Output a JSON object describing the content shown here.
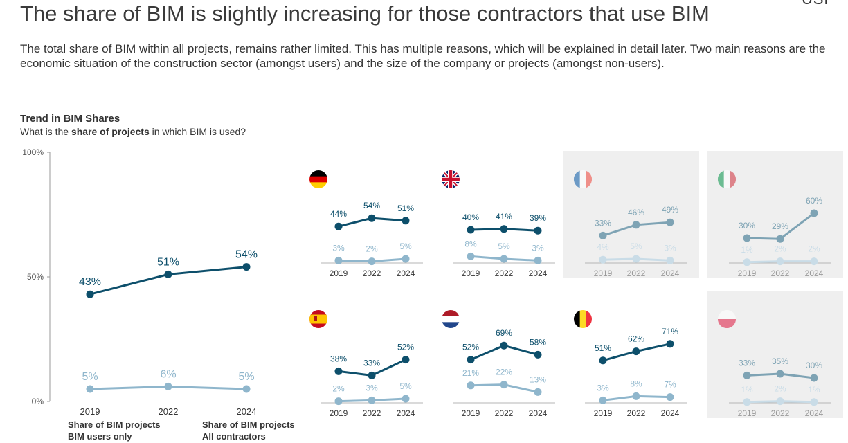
{
  "title": "The share of BIM is slightly increasing for those contractors that use BIM",
  "logo": "USP",
  "subtitle": "The total share of BIM within all projects, remains rather limited. This has multiple reasons, which will be explained in detail later. Two main reasons are the economic situation of the construction sector (amongst users) and the size of the company or projects (amongst non-users).",
  "chart_heading": "Trend in BIM Shares",
  "question": {
    "prefix": "What is the ",
    "bold": "share of projects",
    "suffix": " in which BIM is used?"
  },
  "legend": [
    {
      "line1": "Share of BIM projects",
      "line2": "BIM users only",
      "color": "#0d4f6b"
    },
    {
      "line1": "Share of BIM projects",
      "line2": "All contractors",
      "color": "#8fb6cc"
    }
  ],
  "colors": {
    "users": "#0d4f6b",
    "all": "#8fb6cc",
    "users_muted": "#7ea3b4",
    "all_muted": "#c9dce7",
    "panel_bg": "#efefef"
  },
  "chart_data": [
    {
      "type": "line",
      "x": [
        "2019",
        "2022",
        "2024"
      ],
      "series": [
        {
          "name": "Share of BIM projects BIM users only",
          "values": [
            43,
            51,
            54
          ],
          "labels": [
            "43%",
            "51%",
            "54%"
          ]
        },
        {
          "name": "Share of BIM projects All contractors",
          "values": [
            5,
            6,
            5
          ],
          "labels": [
            "5%",
            "6%",
            "5%"
          ]
        }
      ],
      "yticks": [
        "100%",
        "50%",
        "0%"
      ],
      "ylim": [
        0,
        100
      ],
      "grid": false
    },
    {
      "type": "line",
      "flag": "germany-flag-icon",
      "muted": false,
      "x": [
        "2019",
        "2022",
        "2024"
      ],
      "users": [
        44,
        54,
        51
      ],
      "all": [
        3,
        2,
        5
      ],
      "users_labels": [
        "44%",
        "54%",
        "51%"
      ],
      "all_labels": [
        "3%",
        "2%",
        "5%"
      ]
    },
    {
      "type": "line",
      "flag": "uk-flag-icon",
      "muted": false,
      "x": [
        "2019",
        "2022",
        "2024"
      ],
      "users": [
        40,
        41,
        39
      ],
      "all": [
        8,
        5,
        3
      ],
      "users_labels": [
        "40%",
        "41%",
        "39%"
      ],
      "all_labels": [
        "8%",
        "5%",
        "3%"
      ]
    },
    {
      "type": "line",
      "flag": "france-flag-icon",
      "muted": true,
      "x": [
        "2019",
        "2022",
        "2024"
      ],
      "users": [
        33,
        46,
        49
      ],
      "all": [
        4,
        5,
        3
      ],
      "users_labels": [
        "33%",
        "46%",
        "49%"
      ],
      "all_labels": [
        "4%",
        "5%",
        "3%"
      ]
    },
    {
      "type": "line",
      "flag": "italy-flag-icon",
      "muted": true,
      "x": [
        "2019",
        "2022",
        "2024"
      ],
      "users": [
        30,
        29,
        60
      ],
      "all": [
        1,
        2,
        2
      ],
      "users_labels": [
        "30%",
        "29%",
        "60%"
      ],
      "all_labels": [
        "1%",
        "2%",
        "2%"
      ]
    },
    {
      "type": "line",
      "flag": "spain-flag-icon",
      "muted": false,
      "x": [
        "2019",
        "2022",
        "2024"
      ],
      "users": [
        38,
        33,
        52
      ],
      "all": [
        2,
        3,
        5
      ],
      "users_labels": [
        "38%",
        "33%",
        "52%"
      ],
      "all_labels": [
        "2%",
        "3%",
        "5%"
      ]
    },
    {
      "type": "line",
      "flag": "netherlands-flag-icon",
      "muted": false,
      "x": [
        "2019",
        "2022",
        "2024"
      ],
      "users": [
        52,
        69,
        58
      ],
      "all": [
        21,
        22,
        13
      ],
      "users_labels": [
        "52%",
        "69%",
        "58%"
      ],
      "all_labels": [
        "21%",
        "22%",
        "13%"
      ]
    },
    {
      "type": "line",
      "flag": "belgium-flag-icon",
      "muted": false,
      "x": [
        "2019",
        "2022",
        "2024"
      ],
      "users": [
        51,
        62,
        71
      ],
      "all": [
        3,
        8,
        7
      ],
      "users_labels": [
        "51%",
        "62%",
        "71%"
      ],
      "all_labels": [
        "3%",
        "8%",
        "7%"
      ]
    },
    {
      "type": "line",
      "flag": "poland-flag-icon",
      "muted": true,
      "x": [
        "2019",
        "2022",
        "2024"
      ],
      "users": [
        33,
        35,
        30
      ],
      "all": [
        1,
        2,
        1
      ],
      "users_labels": [
        "33%",
        "35%",
        "30%"
      ],
      "all_labels": [
        "1%",
        "2%",
        "1%"
      ]
    }
  ]
}
